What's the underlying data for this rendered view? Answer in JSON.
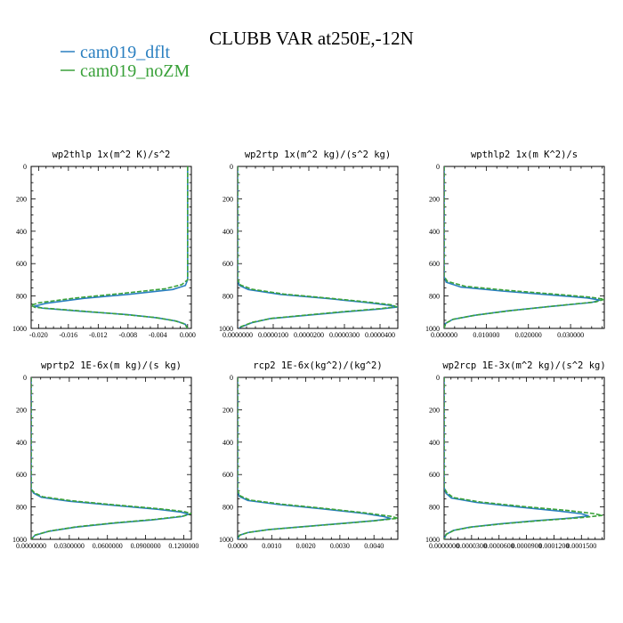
{
  "figure": {
    "title": "CLUBB VAR at250E,-12N",
    "legend": [
      {
        "name": "cam019_dflt",
        "color": "#2a7fc0",
        "dash": "solid"
      },
      {
        "name": "cam019_noZM",
        "color": "#3aa13a",
        "dash": "dashed"
      }
    ]
  },
  "chart_data": [
    {
      "type": "line",
      "title": "wp2thlp  1x(m^2 K)/s^2",
      "ylim": [
        1000,
        0
      ],
      "y_ticks": [
        "0",
        "200",
        "400",
        "600",
        "800",
        "1000"
      ],
      "xlim": [
        -0.021,
        0.0005
      ],
      "x_ticks": [
        -0.02,
        -0.016,
        -0.012,
        -0.008,
        -0.004,
        0.0
      ],
      "x_tick_labels": [
        "-0.020",
        "-0.016",
        "-0.012",
        "-0.008",
        "-0.004",
        "0.000"
      ],
      "series": [
        {
          "name": "cam019_dflt",
          "points": [
            [
              0.0,
              0
            ],
            [
              0.0,
              300
            ],
            [
              0.0,
              600
            ],
            [
              0.0,
              700
            ],
            [
              -0.0003,
              735
            ],
            [
              -0.002,
              760
            ],
            [
              -0.008,
              790
            ],
            [
              -0.014,
              815
            ],
            [
              -0.019,
              845
            ],
            [
              -0.0205,
              862
            ],
            [
              -0.0195,
              875
            ],
            [
              -0.014,
              895
            ],
            [
              -0.008,
              915
            ],
            [
              -0.004,
              935
            ],
            [
              -0.0015,
              955
            ],
            [
              -0.0003,
              975
            ],
            [
              0.0,
              1000
            ]
          ]
        },
        {
          "name": "cam019_noZM",
          "points": [
            [
              0.0,
              0
            ],
            [
              0.0,
              300
            ],
            [
              0.0,
              600
            ],
            [
              0.0,
              700
            ],
            [
              -0.0008,
              730
            ],
            [
              -0.003,
              755
            ],
            [
              -0.009,
              785
            ],
            [
              -0.015,
              812
            ],
            [
              -0.02,
              842
            ],
            [
              -0.021,
              858
            ],
            [
              -0.0205,
              870
            ],
            [
              -0.015,
              890
            ],
            [
              -0.009,
              912
            ],
            [
              -0.0045,
              932
            ],
            [
              -0.0018,
              952
            ],
            [
              -0.0004,
              972
            ],
            [
              0.0,
              1000
            ]
          ]
        }
      ]
    },
    {
      "type": "line",
      "title": "wp2rtp  1x(m^2 kg)/(s^2 kg)",
      "ylim": [
        1000,
        0
      ],
      "y_ticks": [
        "0",
        "200",
        "400",
        "600",
        "800",
        "1000"
      ],
      "xlim": [
        0,
        4.5e-05
      ],
      "x_ticks": [
        0,
        1e-05,
        2e-05,
        3e-05,
        4e-05
      ],
      "x_tick_labels": [
        "0.0000000",
        "0.0000100",
        "0.0000200",
        "0.0000300",
        "0.0000400"
      ],
      "series": [
        {
          "name": "cam019_dflt",
          "points": [
            [
              0,
              0
            ],
            [
              0,
              400
            ],
            [
              0,
              700
            ],
            [
              5e-07,
              735
            ],
            [
              3e-06,
              760
            ],
            [
              1.2e-05,
              790
            ],
            [
              2.5e-05,
              815
            ],
            [
              3.6e-05,
              840
            ],
            [
              4.3e-05,
              858
            ],
            [
              4.5e-05,
              868
            ],
            [
              4e-05,
              880
            ],
            [
              3e-05,
              898
            ],
            [
              2e-05,
              918
            ],
            [
              9e-06,
              940
            ],
            [
              4e-06,
              965
            ],
            [
              5e-07,
              995
            ]
          ]
        },
        {
          "name": "cam019_noZM",
          "points": [
            [
              0,
              0
            ],
            [
              0,
              400
            ],
            [
              0,
              700
            ],
            [
              8e-07,
              732
            ],
            [
              4e-06,
              758
            ],
            [
              1.3e-05,
              788
            ],
            [
              2.6e-05,
              814
            ],
            [
              3.7e-05,
              838
            ],
            [
              4.35e-05,
              855
            ],
            [
              4.45e-05,
              866
            ],
            [
              4e-05,
              878
            ],
            [
              3e-05,
              896
            ],
            [
              2e-05,
              916
            ],
            [
              9.5e-06,
              938
            ],
            [
              4.2e-06,
              962
            ],
            [
              6e-07,
              992
            ]
          ]
        }
      ]
    },
    {
      "type": "line",
      "title": "wpthlp2  1x(m K^2)/s",
      "ylim": [
        1000,
        0
      ],
      "y_ticks": [
        "0",
        "200",
        "400",
        "600",
        "800",
        "1000"
      ],
      "xlim": [
        0,
        0.038
      ],
      "x_ticks": [
        0,
        0.01,
        0.02,
        0.03
      ],
      "x_tick_labels": [
        "0.000000",
        "0.010000",
        "0.020000",
        "0.030000"
      ],
      "series": [
        {
          "name": "cam019_dflt",
          "points": [
            [
              0,
              0
            ],
            [
              0,
              400
            ],
            [
              0,
              680
            ],
            [
              0.0005,
              715
            ],
            [
              0.004,
              745
            ],
            [
              0.014,
              770
            ],
            [
              0.026,
              795
            ],
            [
              0.034,
              812
            ],
            [
              0.037,
              825
            ],
            [
              0.035,
              840
            ],
            [
              0.025,
              865
            ],
            [
              0.015,
              892
            ],
            [
              0.007,
              920
            ],
            [
              0.002,
              945
            ],
            [
              0.0003,
              970
            ],
            [
              0,
              1000
            ]
          ]
        },
        {
          "name": "cam019_noZM",
          "points": [
            [
              0,
              0
            ],
            [
              0,
              400
            ],
            [
              0,
              680
            ],
            [
              0.0008,
              710
            ],
            [
              0.005,
              740
            ],
            [
              0.015,
              765
            ],
            [
              0.027,
              790
            ],
            [
              0.035,
              808
            ],
            [
              0.038,
              820
            ],
            [
              0.036,
              836
            ],
            [
              0.026,
              862
            ],
            [
              0.016,
              890
            ],
            [
              0.0075,
              918
            ],
            [
              0.0022,
              943
            ],
            [
              0.0004,
              968
            ],
            [
              0,
              1000
            ]
          ]
        }
      ]
    },
    {
      "type": "line",
      "title": "wprtp2  1E-6x(m kg)/(s kg)",
      "ylim": [
        1000,
        0
      ],
      "y_ticks": [
        "0",
        "200",
        "400",
        "600",
        "800",
        "1000"
      ],
      "xlim": [
        0,
        0.126
      ],
      "x_ticks": [
        0,
        0.03,
        0.06,
        0.09,
        0.12
      ],
      "x_tick_labels": [
        "0.0000000",
        "0.0300000",
        "0.0600000",
        "0.0900000",
        "0.1200000"
      ],
      "series": [
        {
          "name": "cam019_dflt",
          "points": [
            [
              0,
              0
            ],
            [
              0,
              400
            ],
            [
              0,
              690
            ],
            [
              0.002,
              715
            ],
            [
              0.008,
              740
            ],
            [
              0.03,
              765
            ],
            [
              0.065,
              790
            ],
            [
              0.1,
              815
            ],
            [
              0.118,
              832
            ],
            [
              0.124,
              845
            ],
            [
              0.118,
              860
            ],
            [
              0.095,
              880
            ],
            [
              0.065,
              900
            ],
            [
              0.035,
              925
            ],
            [
              0.014,
              950
            ],
            [
              0.003,
              975
            ],
            [
              0,
              1000
            ]
          ]
        },
        {
          "name": "cam019_noZM",
          "points": [
            [
              0,
              0
            ],
            [
              0,
              400
            ],
            [
              0,
              690
            ],
            [
              0.0025,
              712
            ],
            [
              0.009,
              737
            ],
            [
              0.032,
              762
            ],
            [
              0.067,
              788
            ],
            [
              0.102,
              812
            ],
            [
              0.12,
              828
            ],
            [
              0.126,
              840
            ],
            [
              0.12,
              856
            ],
            [
              0.097,
              877
            ],
            [
              0.066,
              898
            ],
            [
              0.036,
              922
            ],
            [
              0.015,
              948
            ],
            [
              0.0032,
              973
            ],
            [
              0,
              1000
            ]
          ]
        }
      ]
    },
    {
      "type": "line",
      "title": "rcp2  1E-6x(kg^2)/(kg^2)",
      "ylim": [
        1000,
        0
      ],
      "y_ticks": [
        "0",
        "200",
        "400",
        "600",
        "800",
        "1000"
      ],
      "xlim": [
        0,
        0.0047
      ],
      "x_ticks": [
        0,
        0.001,
        0.002,
        0.003,
        0.004
      ],
      "x_tick_labels": [
        "0.0000",
        "0.0010",
        "0.0020",
        "0.0030",
        "0.0040"
      ],
      "series": [
        {
          "name": "cam019_dflt",
          "points": [
            [
              0,
              0
            ],
            [
              0,
              400
            ],
            [
              0,
              700
            ],
            [
              5e-05,
              735
            ],
            [
              0.0003,
              760
            ],
            [
              0.0012,
              785
            ],
            [
              0.0025,
              812
            ],
            [
              0.0037,
              840
            ],
            [
              0.0043,
              860
            ],
            [
              0.0045,
              872
            ],
            [
              0.004,
              885
            ],
            [
              0.003,
              903
            ],
            [
              0.0019,
              922
            ],
            [
              0.0009,
              940
            ],
            [
              0.0003,
              958
            ],
            [
              5e-05,
              975
            ],
            [
              0,
              1000
            ]
          ]
        },
        {
          "name": "cam019_noZM",
          "points": [
            [
              0,
              0
            ],
            [
              0,
              400
            ],
            [
              0,
              700
            ],
            [
              8e-05,
              732
            ],
            [
              0.00035,
              757
            ],
            [
              0.0013,
              783
            ],
            [
              0.0026,
              810
            ],
            [
              0.0038,
              838
            ],
            [
              0.0045,
              858
            ],
            [
              0.0047,
              870
            ],
            [
              0.0041,
              884
            ],
            [
              0.0031,
              902
            ],
            [
              0.002,
              921
            ],
            [
              0.00095,
              939
            ],
            [
              0.00032,
              957
            ],
            [
              6e-05,
              974
            ],
            [
              0,
              1000
            ]
          ]
        }
      ]
    },
    {
      "type": "line",
      "title": "wp2rcp  1E-3x(m^2 kg)/(s^2 kg)",
      "ylim": [
        1000,
        0
      ],
      "y_ticks": [
        "0",
        "200",
        "400",
        "600",
        "800",
        "1000"
      ],
      "xlim": [
        0,
        0.000175
      ],
      "x_ticks": [
        0,
        3e-05,
        6e-05,
        9e-05,
        0.00012,
        0.00015
      ],
      "x_tick_labels": [
        "0.0000000",
        "0.0000300",
        "0.0000600",
        "0.0000900",
        "0.0001200",
        "0.0001500"
      ],
      "series": [
        {
          "name": "cam019_dflt",
          "points": [
            [
              0,
              0
            ],
            [
              0,
              400
            ],
            [
              0,
              680
            ],
            [
              2e-06,
              715
            ],
            [
              8e-06,
              745
            ],
            [
              3.5e-05,
              772
            ],
            [
              8e-05,
              800
            ],
            [
              0.000125,
              825
            ],
            [
              0.00015,
              842
            ],
            [
              0.000158,
              855
            ],
            [
              0.00014,
              868
            ],
            [
              0.0001,
              885
            ],
            [
              6e-05,
              905
            ],
            [
              2.8e-05,
              925
            ],
            [
              1e-05,
              945
            ],
            [
              2e-06,
              970
            ],
            [
              0,
              1000
            ]
          ]
        },
        {
          "name": "cam019_noZM",
          "points": [
            [
              0,
              0
            ],
            [
              0,
              400
            ],
            [
              0,
              680
            ],
            [
              3e-06,
              712
            ],
            [
              1e-05,
              742
            ],
            [
              4e-05,
              770
            ],
            [
              8.8e-05,
              798
            ],
            [
              0.000135,
              822
            ],
            [
              0.000162,
              840
            ],
            [
              0.000173,
              852
            ],
            [
              0.00015,
              866
            ],
            [
              0.000106,
              884
            ],
            [
              6.4e-05,
              904
            ],
            [
              3e-05,
              924
            ],
            [
              1.1e-05,
              944
            ],
            [
              2.5e-06,
              968
            ],
            [
              0,
              1000
            ]
          ]
        }
      ]
    }
  ]
}
